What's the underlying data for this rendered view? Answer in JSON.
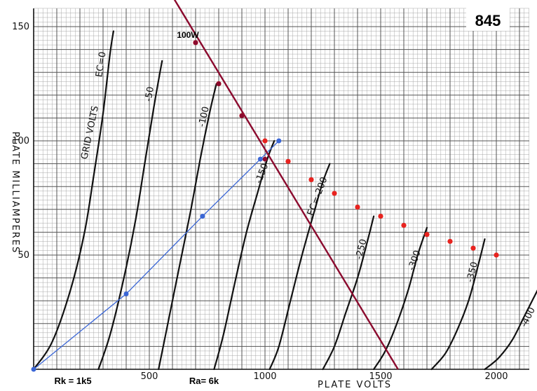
{
  "chart_data": {
    "type": "line",
    "tube_label": "845",
    "xlabel": "PLATE VOLTS",
    "ylabel": "PLATE MILLIAMPERES",
    "xlim": [
      0,
      2200
    ],
    "ylim": [
      0,
      160
    ],
    "x_ticks": [
      {
        "value": 500,
        "label": "500"
      },
      {
        "value": 1000,
        "label": "1000"
      },
      {
        "value": 1500,
        "label": "1500"
      },
      {
        "value": 2000,
        "label": "2000"
      }
    ],
    "y_ticks": [
      {
        "value": 50,
        "label": "50"
      },
      {
        "value": 100,
        "label": "100"
      },
      {
        "value": 150,
        "label": "150"
      }
    ],
    "grid": true,
    "grid_title": "GRID VOLTS",
    "series": [
      {
        "name": "EC=0",
        "label": "EC=0",
        "x": [
          0,
          80,
          160,
          220,
          260,
          300,
          330,
          345
        ],
        "y": [
          0,
          12,
          35,
          60,
          85,
          112,
          138,
          148
        ]
      },
      {
        "name": "-50",
        "label": "-50",
        "x": [
          280,
          330,
          390,
          440,
          480,
          520,
          555
        ],
        "y": [
          0,
          15,
          40,
          65,
          90,
          115,
          135
        ]
      },
      {
        "name": "-100",
        "label": "-100",
        "x": [
          540,
          580,
          630,
          680,
          720,
          760,
          790
        ],
        "y": [
          0,
          20,
          45,
          70,
          92,
          112,
          125
        ]
      },
      {
        "name": "-150",
        "label": "-150",
        "x": [
          780,
          820,
          870,
          920,
          970,
          1010,
          1040
        ],
        "y": [
          0,
          15,
          38,
          60,
          78,
          92,
          100
        ]
      },
      {
        "name": "EC=-200",
        "label": "EC=-200",
        "x": [
          1020,
          1060,
          1110,
          1160,
          1210,
          1250,
          1280
        ],
        "y": [
          0,
          10,
          30,
          50,
          68,
          82,
          90
        ]
      },
      {
        "name": "-250",
        "label": "-250",
        "x": [
          1250,
          1300,
          1350,
          1400,
          1440,
          1470
        ],
        "y": [
          0,
          10,
          25,
          40,
          55,
          67
        ]
      },
      {
        "name": "-300",
        "label": "-300",
        "x": [
          1470,
          1520,
          1570,
          1620,
          1660,
          1700
        ],
        "y": [
          0,
          8,
          20,
          35,
          50,
          62
        ]
      },
      {
        "name": "-350",
        "label": "-350",
        "x": [
          1720,
          1780,
          1830,
          1880,
          1920,
          1950
        ],
        "y": [
          0,
          7,
          17,
          30,
          45,
          57
        ]
      },
      {
        "name": "-400",
        "label": "-400",
        "x": [
          1950,
          2010,
          2070,
          2120,
          2160,
          2190
        ],
        "y": [
          0,
          5,
          13,
          23,
          31,
          37
        ]
      }
    ],
    "load_line": {
      "label": "Ra= 6k",
      "x": [
        560,
        1575
      ],
      "y": [
        170,
        0
      ],
      "color": "#8b0a2e"
    },
    "bias_line": {
      "label": "Rk = 1k5",
      "x": [
        0,
        400,
        730,
        980,
        1060
      ],
      "y": [
        0,
        33,
        67,
        92,
        100
      ],
      "color": "#3a66d6"
    },
    "dissipation_points": {
      "label": "100W",
      "color": "#e8231f",
      "x": [
        700,
        800,
        900,
        1000,
        1100,
        1200,
        1300,
        1400,
        1500,
        1600,
        1700,
        1800,
        1900,
        2000
      ],
      "y": [
        143,
        125,
        111,
        100,
        91,
        83,
        77,
        71,
        67,
        63,
        59,
        56,
        53,
        50
      ]
    }
  }
}
